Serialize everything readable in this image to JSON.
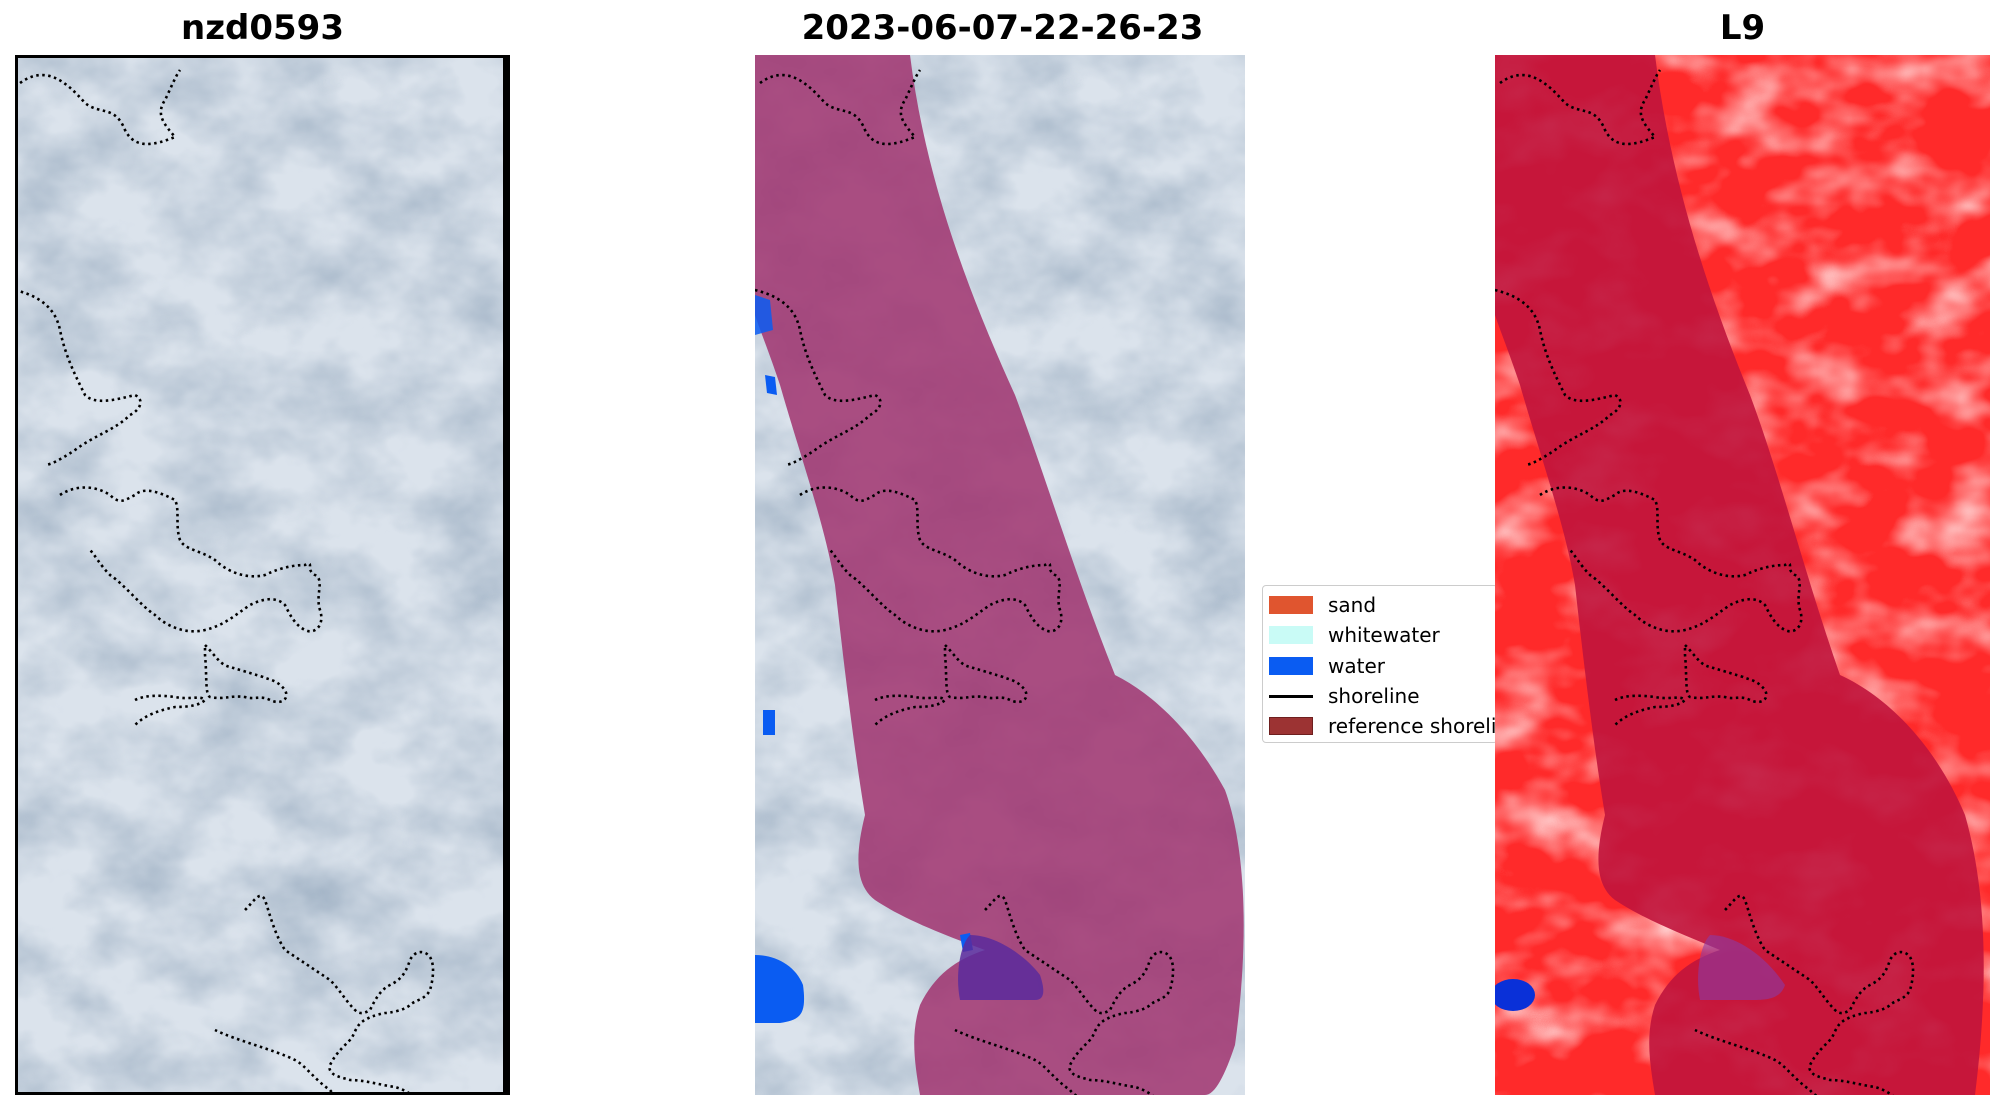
{
  "panels": [
    {
      "title": "nzd0593"
    },
    {
      "title": "2023-06-07-22-26-23"
    },
    {
      "title": "L9"
    }
  ],
  "legend": {
    "items": [
      {
        "label": "sand",
        "color": "#e0552f",
        "kind": "patch"
      },
      {
        "label": "whitewater",
        "color": "#c9fbf6",
        "kind": "patch"
      },
      {
        "label": "water",
        "color": "#0a5cf2",
        "kind": "patch"
      },
      {
        "label": "shoreline",
        "color": "#000000",
        "kind": "line"
      },
      {
        "label": "reference shoreline",
        "color": "#9c3333",
        "kind": "patch"
      }
    ]
  },
  "colors": {
    "imagery_light": "#dde5ee",
    "imagery_dark": "#5f7790",
    "mask_overlay": "#a0326e",
    "water": "#0a5cf2",
    "index_red": "#ff2020",
    "index_overlay": "#c0143c"
  }
}
